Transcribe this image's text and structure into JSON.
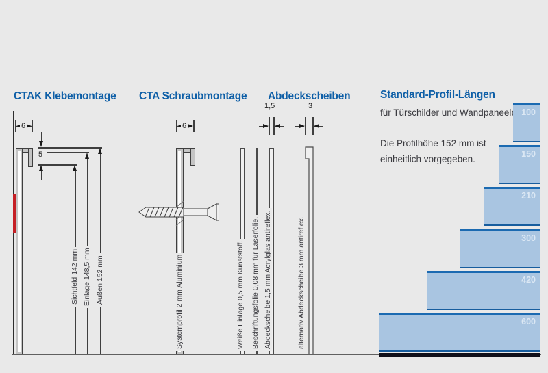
{
  "sections": {
    "ctak": {
      "title": "CTAK Klebemontage",
      "dim_depth": "6",
      "dim_border": "5",
      "dims": [
        {
          "label": "Sichtfeld 142 mm"
        },
        {
          "label": "Einlage 148,5 mm"
        },
        {
          "label": "Außen 152 mm"
        }
      ]
    },
    "cta": {
      "title": "CTA Schraubmontage",
      "dim_depth": "6",
      "profile_label": "Systemprofil 2 mm Aluminium"
    },
    "abdeck": {
      "title": "Abdeckscheiben",
      "dim_thin": "1,5",
      "dim_thick": "3",
      "sheets": [
        {
          "label": "Weiße Einlage 0,5 mm Kunststoff."
        },
        {
          "label": "Beschriftungsfolie 0,08 mm für Laserfolie."
        },
        {
          "label": "Abdeckscheibe 1,5 mm Acrylglas antireflex."
        },
        {
          "label": "alternativ Abdeckscheibe 3 mm antireflex."
        }
      ]
    },
    "standard": {
      "title": "Standard-Profil-Längen",
      "subtitle": "für Türschilder und Wandpaneele",
      "note_line1": "Die Profilhöhe 152 mm ist",
      "note_line2": "einheitlich vorgegeben."
    }
  },
  "chart_data": {
    "type": "bar",
    "orientation": "horizontal",
    "title": "Standard-Profil-Längen",
    "unit": "mm",
    "categories": [
      "100",
      "150",
      "210",
      "300",
      "420",
      "600"
    ],
    "values": [
      100,
      150,
      210,
      300,
      420,
      600
    ],
    "profile_height_mm": 152
  },
  "colors": {
    "background": "#e9e9e9",
    "heading_blue": "#0e5fa7",
    "bar_fill": "#a9c5e1",
    "bar_stripe": "#1b6ab1",
    "tape_red": "#c52026",
    "line_dark": "#3f3f3f"
  }
}
